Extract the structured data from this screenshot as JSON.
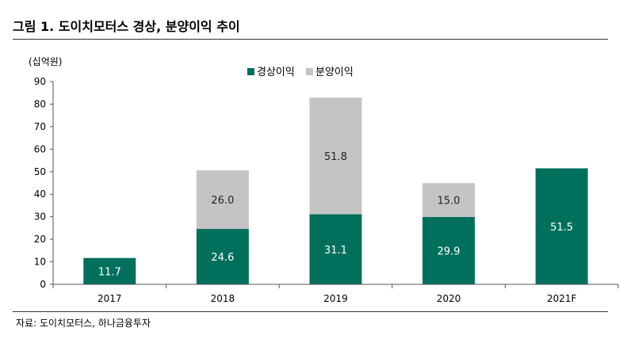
{
  "figure": {
    "title": "그림 1. 도이치모터스 경상, 분양이익 추이",
    "source": "자료: 도이치모터스, 하나금융투자"
  },
  "chart_data": {
    "type": "bar",
    "stacked": true,
    "unit": "(십억원)",
    "categories": [
      "2017",
      "2018",
      "2019",
      "2020",
      "2021F"
    ],
    "series": [
      {
        "name": "경상이익",
        "color": "#00705d",
        "values": [
          11.7,
          24.6,
          31.1,
          29.9,
          51.5
        ],
        "labels": [
          "11.7",
          "24.6",
          "31.1",
          "29.9",
          "51.5"
        ]
      },
      {
        "name": "분양이익",
        "color": "#c4c4c4",
        "values": [
          0,
          26.0,
          51.8,
          15.0,
          0
        ],
        "labels": [
          "",
          "26.0",
          "51.8",
          "15.0",
          ""
        ]
      }
    ],
    "ylim": [
      0,
      90
    ],
    "yticks": [
      0,
      10,
      20,
      30,
      40,
      50,
      60,
      70,
      80,
      90
    ],
    "legend_position": "top-center",
    "grid": false
  }
}
